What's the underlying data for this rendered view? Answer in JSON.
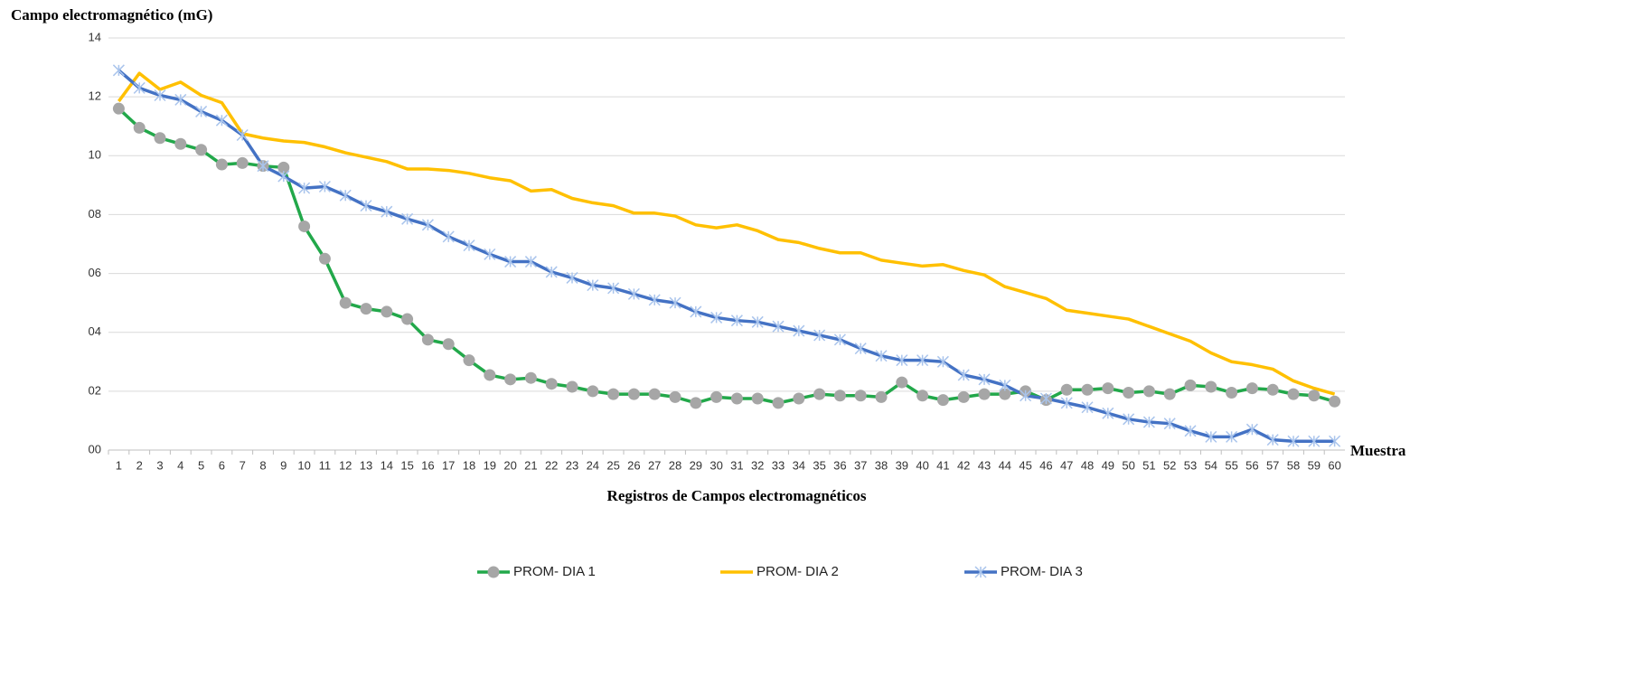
{
  "chart_data": {
    "type": "line",
    "y_label": "Campo electromagnético (mG)",
    "x_end_label": "Muestra",
    "x_label": "Registros de Campos electromagnéticos",
    "categories": [
      "1",
      "2",
      "3",
      "4",
      "5",
      "6",
      "7",
      "8",
      "9",
      "10",
      "11",
      "12",
      "13",
      "14",
      "15",
      "16",
      "17",
      "18",
      "19",
      "20",
      "21",
      "22",
      "23",
      "24",
      "25",
      "26",
      "27",
      "28",
      "29",
      "30",
      "31",
      "32",
      "33",
      "34",
      "35",
      "36",
      "37",
      "38",
      "39",
      "40",
      "41",
      "42",
      "43",
      "44",
      "45",
      "46",
      "47",
      "48",
      "49",
      "50",
      "51",
      "52",
      "53",
      "54",
      "55",
      "56",
      "57",
      "58",
      "59",
      "60"
    ],
    "series": [
      {
        "name": "PROM- DIA 1",
        "color": "#22a84a",
        "marker": "circle",
        "marker_color": "#a6a6a6",
        "values": [
          11.6,
          10.95,
          10.6,
          10.4,
          10.2,
          9.7,
          9.75,
          9.65,
          9.6,
          7.6,
          6.5,
          5.0,
          4.8,
          4.7,
          4.45,
          3.75,
          3.6,
          3.05,
          2.55,
          2.4,
          2.45,
          2.25,
          2.15,
          2.0,
          1.9,
          1.9,
          1.9,
          1.8,
          1.6,
          1.8,
          1.75,
          1.75,
          1.6,
          1.75,
          1.9,
          1.85,
          1.85,
          1.8,
          2.3,
          1.85,
          1.7,
          1.8,
          1.9,
          1.9,
          2.0,
          1.7,
          2.05,
          2.05,
          2.1,
          1.95,
          2.0,
          1.9,
          2.2,
          2.15,
          1.95,
          2.1,
          2.05,
          1.9,
          1.85,
          1.65
        ]
      },
      {
        "name": "PROM- DIA 2",
        "color": "#ffc000",
        "marker": "none",
        "values": [
          11.85,
          12.8,
          12.25,
          12.5,
          12.05,
          11.8,
          10.75,
          10.6,
          10.5,
          10.45,
          10.3,
          10.1,
          9.95,
          9.8,
          9.55,
          9.55,
          9.5,
          9.4,
          9.25,
          9.15,
          8.8,
          8.85,
          8.55,
          8.4,
          8.3,
          8.05,
          8.05,
          7.95,
          7.65,
          7.55,
          7.65,
          7.45,
          7.15,
          7.05,
          6.85,
          6.7,
          6.7,
          6.45,
          6.35,
          6.25,
          6.3,
          6.1,
          5.95,
          5.55,
          5.35,
          5.15,
          4.75,
          4.65,
          4.55,
          4.45,
          4.2,
          3.95,
          3.7,
          3.3,
          3.0,
          2.9,
          2.75,
          2.35,
          2.1,
          1.9
        ]
      },
      {
        "name": "PROM- DIA 3",
        "color": "#4472c4",
        "marker": "star",
        "marker_color": "#a9c4ec",
        "values": [
          12.9,
          12.3,
          12.05,
          11.9,
          11.5,
          11.2,
          10.7,
          9.65,
          9.3,
          8.9,
          8.95,
          8.65,
          8.3,
          8.1,
          7.85,
          7.65,
          7.25,
          6.95,
          6.65,
          6.4,
          6.4,
          6.05,
          5.85,
          5.6,
          5.5,
          5.3,
          5.1,
          5.0,
          4.7,
          4.5,
          4.4,
          4.35,
          4.2,
          4.05,
          3.9,
          3.75,
          3.45,
          3.2,
          3.05,
          3.05,
          3.0,
          2.55,
          2.4,
          2.2,
          1.85,
          1.75,
          1.6,
          1.45,
          1.25,
          1.05,
          0.95,
          0.9,
          0.65,
          0.45,
          0.45,
          0.7,
          0.35,
          0.3,
          0.3,
          0.3
        ]
      }
    ],
    "ylim": [
      0,
      14
    ],
    "yticks": [
      {
        "value": 0,
        "label": "00"
      },
      {
        "value": 2,
        "label": "02"
      },
      {
        "value": 4,
        "label": "04"
      },
      {
        "value": 6,
        "label": "06"
      },
      {
        "value": 8,
        "label": "08"
      },
      10,
      12,
      14
    ],
    "grid": true,
    "legend": "bottom"
  }
}
